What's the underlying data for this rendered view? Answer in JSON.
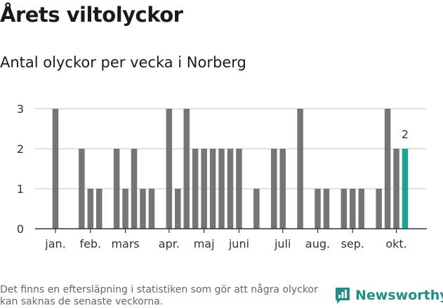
{
  "title": "Årets viltolyckor",
  "subtitle": "Antal olyckor per vecka i Norberg",
  "footnote": "Det finns en eftersläpning i statistiken som gör att några olyckor kan saknas de senaste veckorna.",
  "brand": {
    "name": "Newsworthy",
    "icon": "newsworthy-logo-icon",
    "color": "#1f8f86"
  },
  "chart_data": {
    "type": "bar",
    "x": [
      1,
      2,
      3,
      4,
      5,
      6,
      7,
      8,
      9,
      10,
      11,
      12,
      13,
      14,
      15,
      16,
      17,
      18,
      19,
      20,
      21,
      22,
      23,
      24,
      25,
      26,
      27,
      28,
      29,
      30,
      31,
      32,
      33,
      34,
      35,
      36,
      37,
      38,
      39,
      40,
      41
    ],
    "values": [
      3,
      0,
      0,
      2,
      1,
      1,
      0,
      2,
      1,
      2,
      1,
      1,
      0,
      3,
      1,
      3,
      2,
      2,
      2,
      2,
      2,
      2,
      0,
      1,
      0,
      2,
      2,
      0,
      3,
      0,
      1,
      1,
      0,
      1,
      1,
      1,
      0,
      1,
      3,
      2,
      2
    ],
    "highlight_index": 40,
    "data_labels": [
      {
        "index": 40,
        "text": "2"
      }
    ],
    "yticks": [
      0,
      1,
      2,
      3
    ],
    "ylim": [
      0,
      3
    ],
    "xticks": [
      {
        "label": "jan.",
        "x": 1
      },
      {
        "label": "feb.",
        "x": 5
      },
      {
        "label": "mars",
        "x": 9
      },
      {
        "label": "apr.",
        "x": 14
      },
      {
        "label": "maj",
        "x": 18
      },
      {
        "label": "juni",
        "x": 22
      },
      {
        "label": "juli",
        "x": 27
      },
      {
        "label": "aug.",
        "x": 31
      },
      {
        "label": "sep.",
        "x": 35
      },
      {
        "label": "okt.",
        "x": 40
      }
    ],
    "grid": true,
    "colors": {
      "bar": "#767476",
      "highlight": "#1ea393",
      "grid": "#d9d9d9",
      "axis": "#333333"
    }
  }
}
